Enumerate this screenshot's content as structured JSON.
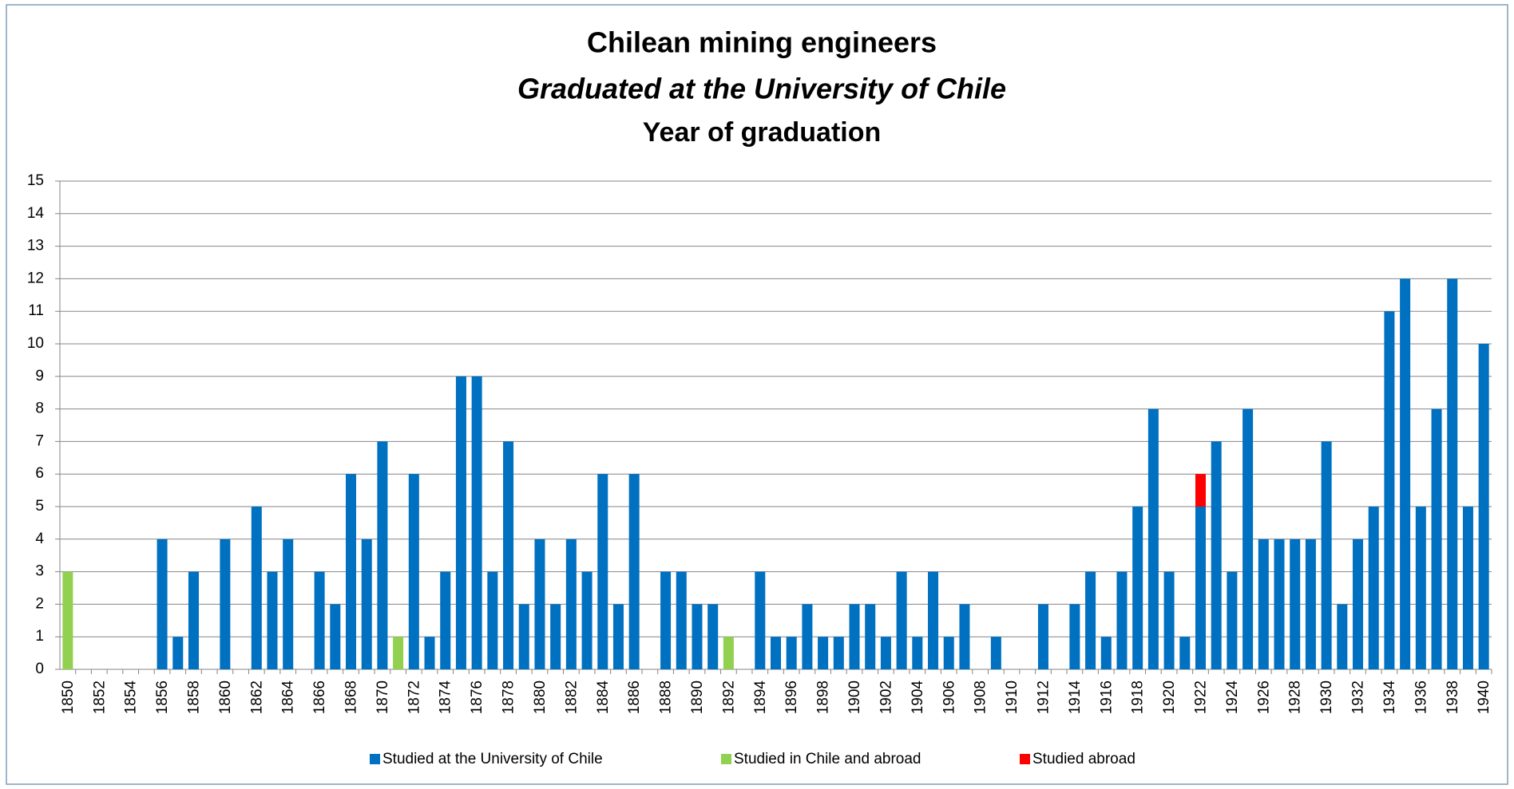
{
  "chart_data": {
    "type": "stacked_bar",
    "title": "Chilean mining engineers",
    "subtitle": "Graduated at the University of Chile",
    "x_label": "Year of graduation",
    "categories": [
      "1850",
      null,
      "1852",
      null,
      "1854",
      null,
      "1856",
      null,
      "1858",
      null,
      "1860",
      null,
      "1862",
      null,
      "1864",
      null,
      "1866",
      null,
      "1868",
      null,
      "1870",
      null,
      "1872",
      null,
      "1874",
      null,
      "1876",
      null,
      "1878",
      null,
      "1880",
      null,
      "1882",
      null,
      "1884",
      null,
      "1886",
      null,
      "1888",
      null,
      "1890",
      null,
      "1892",
      null,
      "1894",
      null,
      "1896",
      null,
      "1898",
      null,
      "1900",
      null,
      "1902",
      null,
      "1904",
      null,
      "1906",
      null,
      "1908",
      null,
      "1910",
      null,
      "1912",
      null,
      "1914",
      null,
      "1916",
      null,
      "1918",
      null,
      "1920",
      null,
      "1922",
      null,
      "1924",
      null,
      "1926",
      null,
      "1928",
      null,
      "1930",
      null,
      "1932",
      null,
      "1934",
      null,
      "1936",
      null,
      "1938",
      null,
      "1940"
    ],
    "series": [
      {
        "name": "Studied at the University of Chile",
        "color": "#0070c0",
        "values": [
          0,
          0,
          0,
          0,
          0,
          0,
          4,
          1,
          3,
          0,
          4,
          0,
          5,
          3,
          4,
          0,
          3,
          2,
          6,
          4,
          7,
          0,
          6,
          1,
          3,
          9,
          9,
          3,
          7,
          2,
          4,
          2,
          4,
          3,
          6,
          2,
          6,
          0,
          3,
          3,
          2,
          2,
          0,
          0,
          3,
          1,
          1,
          2,
          1,
          1,
          2,
          2,
          1,
          3,
          1,
          3,
          1,
          2,
          0,
          1,
          0,
          0,
          2,
          0,
          2,
          3,
          1,
          3,
          5,
          8,
          3,
          1,
          5,
          7,
          3,
          8,
          4,
          4,
          4,
          4,
          7,
          2,
          4,
          5,
          11,
          12,
          5,
          8,
          12,
          5,
          10
        ]
      },
      {
        "name": "Studied in Chile and abroad",
        "color": "#92d050",
        "values": [
          3,
          0,
          0,
          0,
          0,
          0,
          0,
          0,
          0,
          0,
          0,
          0,
          0,
          0,
          0,
          0,
          0,
          0,
          0,
          0,
          0,
          1,
          0,
          0,
          0,
          0,
          0,
          0,
          0,
          0,
          0,
          0,
          0,
          0,
          0,
          0,
          0,
          0,
          0,
          0,
          0,
          0,
          1,
          0,
          0,
          0,
          0,
          0,
          0,
          0,
          0,
          0,
          0,
          0,
          0,
          0,
          0,
          0,
          0,
          0,
          0,
          0,
          0,
          0,
          0,
          0,
          0,
          0,
          0,
          0,
          0,
          0,
          0,
          0,
          0,
          0,
          0,
          0,
          0,
          0,
          0,
          0,
          0,
          0,
          0,
          0,
          0,
          0,
          0,
          0,
          0
        ]
      },
      {
        "name": "Studied abroad",
        "color": "#ff0000",
        "values": [
          0,
          0,
          0,
          0,
          0,
          0,
          0,
          0,
          0,
          0,
          0,
          0,
          0,
          0,
          0,
          0,
          0,
          0,
          0,
          0,
          0,
          0,
          0,
          0,
          0,
          0,
          0,
          0,
          0,
          0,
          0,
          0,
          0,
          0,
          0,
          0,
          0,
          0,
          0,
          0,
          0,
          0,
          0,
          0,
          0,
          0,
          0,
          0,
          0,
          0,
          0,
          0,
          0,
          0,
          0,
          0,
          0,
          0,
          0,
          0,
          0,
          0,
          0,
          0,
          0,
          0,
          0,
          0,
          0,
          0,
          0,
          0,
          1,
          0,
          0,
          0,
          0,
          0,
          0,
          0,
          0,
          0,
          0,
          0,
          0,
          0,
          0,
          0,
          0,
          0,
          0
        ]
      }
    ],
    "ylim": [
      0,
      15
    ],
    "yticks": [
      0,
      1,
      2,
      3,
      4,
      5,
      6,
      7,
      8,
      9,
      10,
      11,
      12,
      13,
      14,
      15
    ],
    "grid": true,
    "legend": "bottom"
  }
}
